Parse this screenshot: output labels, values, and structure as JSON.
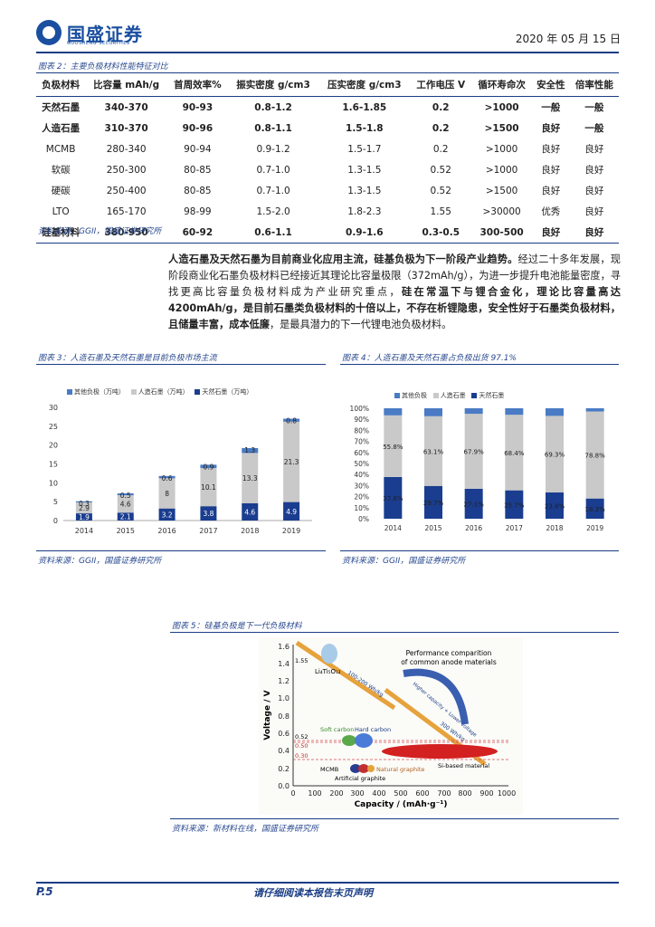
{
  "header": {
    "logo_text": "国盛证券",
    "logo_sub": "GUOSHENG SECURITIES",
    "date": "2020 年 05 月 15 日"
  },
  "table_section": {
    "caption": "图表 2：主要负极材料性能特征对比",
    "headers": [
      "负极材料",
      "比容量 mAh/g",
      "首周效率%",
      "振实密度 g/cm3",
      "压实密度 g/cm3",
      "工作电压 V",
      "循环寿命次",
      "安全性",
      "倍率性能"
    ],
    "rows": [
      [
        "天然石墨",
        "340-370",
        "90-93",
        "0.8-1.2",
        "1.6-1.85",
        "0.2",
        ">1000",
        "一般",
        "一般"
      ],
      [
        "人造石墨",
        "310-370",
        "90-96",
        "0.8-1.1",
        "1.5-1.8",
        "0.2",
        ">1500",
        "良好",
        "一般"
      ],
      [
        "MCMB",
        "280-340",
        "90-94",
        "0.9-1.2",
        "1.5-1.7",
        "0.2",
        ">1000",
        "良好",
        "良好"
      ],
      [
        "软碳",
        "250-300",
        "80-85",
        "0.7-1.0",
        "1.3-1.5",
        "0.52",
        ">1000",
        "良好",
        "良好"
      ],
      [
        "硬碳",
        "250-400",
        "80-85",
        "0.7-1.0",
        "1.3-1.5",
        "0.52",
        ">1500",
        "良好",
        "良好"
      ],
      [
        "LTO",
        "165-170",
        "98-99",
        "1.5-2.0",
        "1.8-2.3",
        "1.55",
        ">30000",
        "优秀",
        "良好"
      ],
      [
        "硅基材料",
        "380-950",
        "60-92",
        "0.6-1.1",
        "0.9-1.6",
        "0.3-0.5",
        "300-500",
        "良好",
        "良好"
      ]
    ],
    "source": "资料来源：GGII，国盛证券研究所"
  },
  "paragraph": {
    "p1": "人造石墨及天然石墨为目前商业化应用主流，硅基负极为下一阶段产业趋势。",
    "p2": "经过二十多年发展，现阶段商业化石墨负极材料已经接近其理论比容量极限（372mAh/g），为进一步提升电池能量密度，寻找更高比容量负极材料成为产业研究重点，",
    "p3": "硅在常温下与锂合金化，理论比容量高达 4200mAh/g，是目前石墨类负极材料的十倍以上，不存在析锂隐患，安全性好于石墨类负极材料，且储量丰富，成本低廉",
    "p4": "，是最具潜力的下一代锂电池负极材料。"
  },
  "fig3": {
    "caption": "图表 3：人造石墨及天然石墨是目前负极市场主流",
    "source": "资料来源：GGII，国盛证券研究所"
  },
  "fig4": {
    "caption": "图表 4：人造石墨及天然石墨占负极出货 97.1%",
    "source": "资料来源：GGII，国盛证券研究所"
  },
  "fig5": {
    "caption": "图表 5：硅基负极是下一代负极材料",
    "source": "资料来源：新材料在线，国盛证券研究所",
    "title_line1": "Performance comparition",
    "title_line2": "of common anode materials",
    "xlabel": "Capacity / (mAh·g⁻¹)",
    "ylabel": "Voltage / V",
    "labels": {
      "lto": "Li₄Ti₅O₁₂",
      "soft": "Soft carbon",
      "hard": "Hard carbon",
      "si": "Si-based material",
      "mcmb": "MCMB",
      "natural": "Natural graphite",
      "artificial": "Artificial graphite",
      "arrow1": "100-200 Wh/kg",
      "arrow2": "300 Wh/kg",
      "curve": "Higher capacity + Lower voltage"
    },
    "voltage_marks": [
      "1.55",
      "0.52",
      "0.50",
      "0.30"
    ]
  },
  "chart_data": [
    {
      "type": "bar",
      "stacked": true,
      "categories": [
        "2014",
        "2015",
        "2016",
        "2017",
        "2018",
        "2019"
      ],
      "series": [
        {
          "name": "其他负极（万吨）",
          "values": [
            0.3,
            0.5,
            0.6,
            0.9,
            1.3,
            0.8
          ],
          "color": "#4a7bc4"
        },
        {
          "name": "人造石墨（万吨）",
          "values": [
            2.9,
            4.6,
            8.0,
            10.1,
            13.3,
            21.3
          ],
          "color": "#c9c9c9"
        },
        {
          "name": "天然石墨（万吨）",
          "values": [
            1.9,
            2.1,
            3.2,
            3.8,
            4.6,
            4.9
          ],
          "color": "#1a3d8f"
        }
      ],
      "ylim": [
        0,
        30
      ],
      "yticks": [
        0,
        5,
        10,
        15,
        20,
        25,
        30
      ]
    },
    {
      "type": "bar",
      "stacked": true,
      "percent": true,
      "categories": [
        "2014",
        "2015",
        "2016",
        "2017",
        "2018",
        "2019"
      ],
      "series": [
        {
          "name": "其他负极",
          "values": [
            6.4,
            7.2,
            5.0,
            5.9,
            6.9,
            2.9
          ],
          "color": "#4a7bc4"
        },
        {
          "name": "人造石墨",
          "values": [
            55.8,
            63.1,
            67.9,
            68.4,
            69.3,
            78.8
          ],
          "color": "#c9c9c9"
        },
        {
          "name": "天然石墨",
          "values": [
            37.8,
            29.7,
            27.1,
            25.7,
            23.8,
            18.3
          ],
          "color": "#1a3d8f"
        }
      ],
      "labels_ren": [
        "55.8%",
        "63.1%",
        "67.9%",
        "68.4%",
        "69.3%",
        "78.8%"
      ],
      "labels_tian": [
        "37.8%",
        "29.7%",
        "27.1%",
        "25.7%",
        "23.8%",
        "18.3%"
      ],
      "ylim": [
        0,
        100
      ],
      "yticks": [
        "0%",
        "10%",
        "20%",
        "30%",
        "40%",
        "50%",
        "60%",
        "70%",
        "80%",
        "90%",
        "100%"
      ]
    }
  ],
  "footer": {
    "page": "P.5",
    "disclaimer": "请仔细阅读本报告末页声明"
  }
}
